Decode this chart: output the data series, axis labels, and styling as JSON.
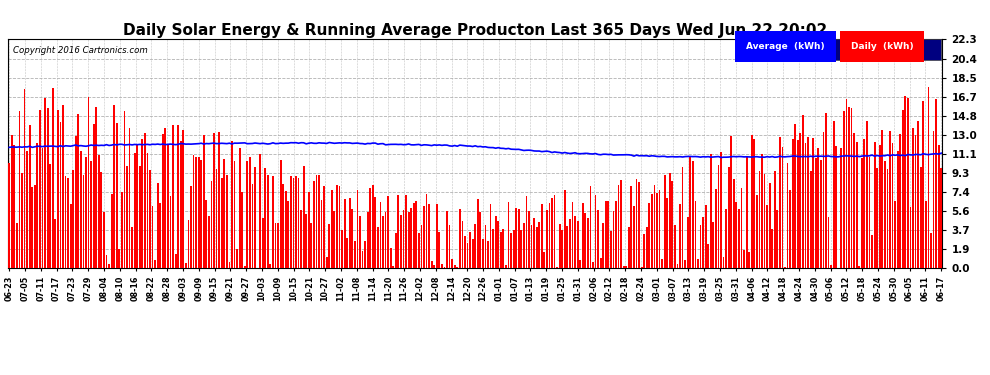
{
  "title": "Daily Solar Energy & Running Average Producton Last 365 Days Wed Jun 22 20:02",
  "copyright": "Copyright 2016 Cartronics.com",
  "yticks": [
    0.0,
    1.9,
    3.7,
    5.6,
    7.4,
    9.3,
    11.1,
    13.0,
    14.8,
    16.7,
    18.5,
    20.4,
    22.3
  ],
  "ymax": 22.3,
  "ymin": 0.0,
  "bar_color": "#ff0000",
  "avg_color": "#0000ff",
  "bg_color": "#ffffff",
  "grid_color": "#aaaaaa",
  "legend_bg_color": "#000080",
  "title_fontsize": 11,
  "n_days": 365,
  "avg_ctrl_x": [
    0,
    40,
    80,
    130,
    180,
    220,
    260,
    300,
    340,
    364
  ],
  "avg_ctrl_y": [
    11.8,
    12.0,
    12.15,
    12.2,
    11.9,
    11.2,
    10.85,
    10.85,
    10.95,
    11.15
  ],
  "xtick_labels": [
    "06-23",
    "07-05",
    "07-11",
    "07-17",
    "07-23",
    "07-29",
    "08-04",
    "08-10",
    "08-16",
    "08-22",
    "08-28",
    "09-03",
    "09-09",
    "09-15",
    "09-21",
    "09-27",
    "10-03",
    "10-09",
    "10-15",
    "10-21",
    "10-27",
    "11-02",
    "11-08",
    "11-14",
    "11-20",
    "11-26",
    "12-02",
    "12-08",
    "12-14",
    "12-20",
    "12-26",
    "01-01",
    "01-07",
    "01-13",
    "01-19",
    "01-25",
    "01-31",
    "02-06",
    "02-12",
    "02-18",
    "02-24",
    "03-01",
    "03-07",
    "03-13",
    "03-19",
    "03-25",
    "03-31",
    "04-06",
    "04-12",
    "04-18",
    "04-24",
    "04-30",
    "05-06",
    "05-12",
    "05-18",
    "05-24",
    "05-30",
    "06-05",
    "06-11",
    "06-17"
  ],
  "legend_avg_label": "Average  (kWh)",
  "legend_daily_label": "Daily  (kWh)"
}
